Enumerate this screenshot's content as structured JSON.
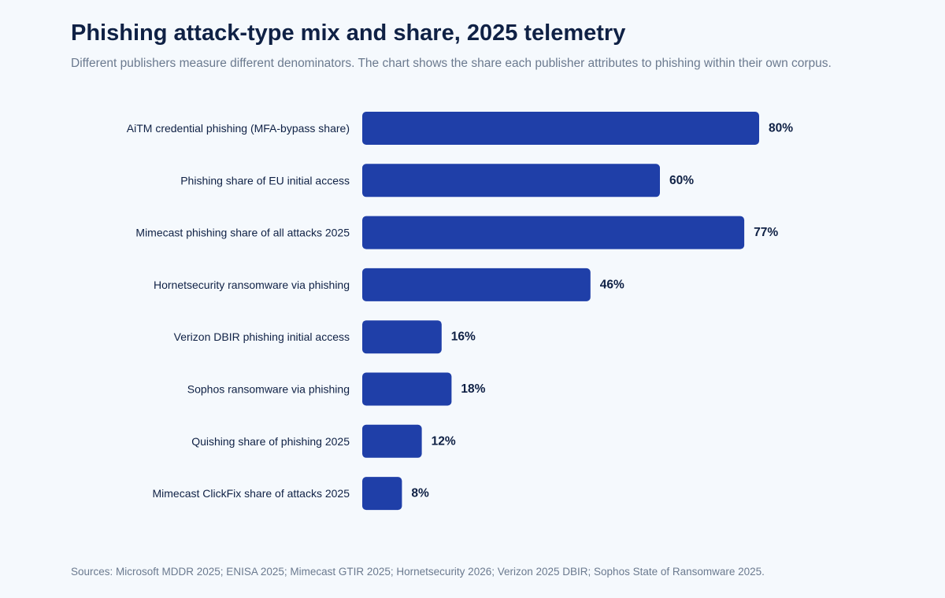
{
  "header": {
    "title": "Phishing attack-type mix and share, 2025 telemetry",
    "subtitle": "Different publishers measure different denominators. The chart shows the share each publisher attributes to phishing within their own corpus."
  },
  "footer": {
    "sources": "Sources: Microsoft MDDR 2025; ENISA 2025; Mimecast GTIR 2025; Hornetsecurity 2026; Verizon 2025 DBIR; Sophos State of Ransomware 2025."
  },
  "colors": {
    "bar": "#1f3fa8",
    "background": "#f5f9fd",
    "text": "#0f2145",
    "muted": "#6b7a8f"
  },
  "chart_data": {
    "type": "bar",
    "orientation": "horizontal",
    "title": "Phishing attack-type mix and share, 2025 telemetry",
    "xlabel": "",
    "ylabel": "",
    "xlim": [
      0,
      100
    ],
    "grid": false,
    "unit_suffix": "%",
    "categories": [
      "AiTM credential phishing (MFA-bypass share)",
      "Phishing share of EU initial access",
      "Mimecast phishing share of all attacks 2025",
      "Hornetsecurity ransomware via phishing",
      "Verizon DBIR phishing initial access",
      "Sophos ransomware via phishing",
      "Quishing share of phishing 2025",
      "Mimecast ClickFix share of attacks 2025"
    ],
    "values": [
      80,
      60,
      77,
      46,
      16,
      18,
      12,
      8
    ]
  }
}
